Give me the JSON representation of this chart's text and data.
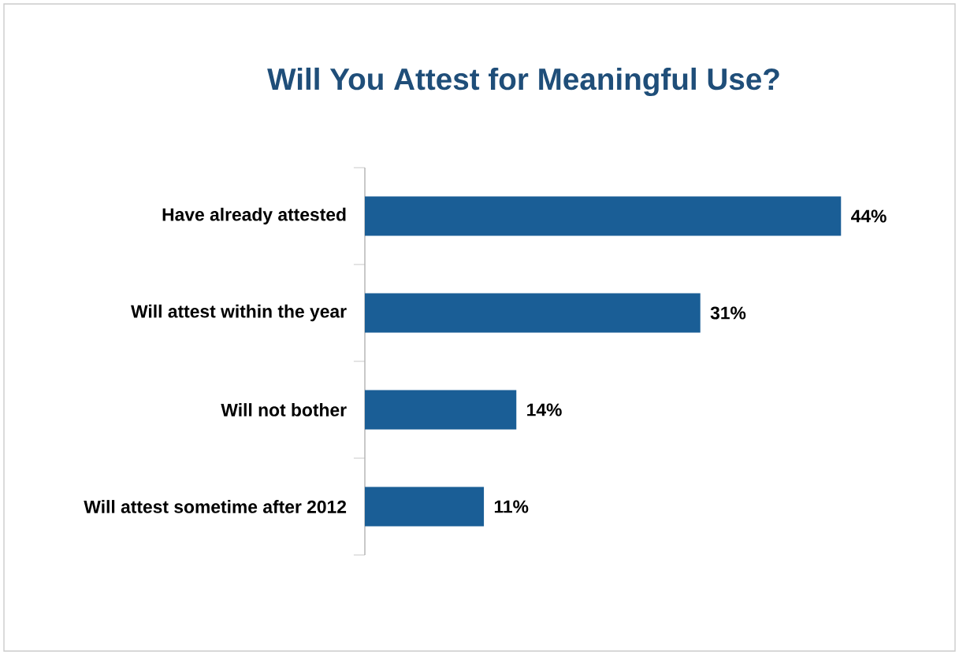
{
  "chart_data": {
    "type": "bar",
    "orientation": "horizontal",
    "title": "Will You Attest for Meaningful Use?",
    "categories": [
      "Have already attested",
      "Will attest within the year",
      "Will not bother",
      "Will attest sometime after 2012"
    ],
    "values": [
      44,
      31,
      14,
      11
    ],
    "value_labels": [
      "44%",
      "31%",
      "14%",
      "11%"
    ],
    "color": "#1a5e96"
  }
}
